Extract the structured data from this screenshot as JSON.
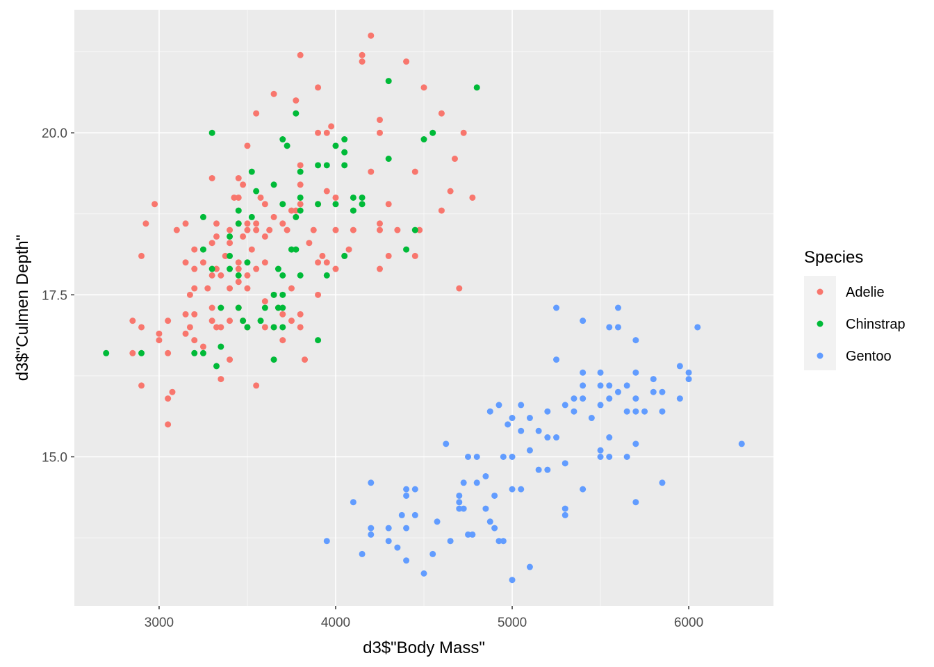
{
  "chart_data": {
    "type": "scatter",
    "xlabel": "d3$\"Body Mass\"",
    "ylabel": "d3$\"Culmen Depth\"",
    "xlim": [
      2520,
      6480
    ],
    "ylim": [
      12.7,
      21.9
    ],
    "x_ticks": [
      3000,
      4000,
      5000,
      6000
    ],
    "y_ticks": [
      15.0,
      17.5,
      20.0
    ],
    "x_tick_labels": [
      "3000",
      "4000",
      "5000",
      "6000"
    ],
    "y_tick_labels": [
      "15.0",
      "17.5",
      "20.0"
    ],
    "grid": true,
    "legend": {
      "title": "Species",
      "placement": "right"
    },
    "series": [
      {
        "name": "Adelie",
        "color": "#F8766D",
        "points": [
          [
            2850,
            17.1
          ],
          [
            2850,
            16.6
          ],
          [
            2900,
            18.1
          ],
          [
            2900,
            17.0
          ],
          [
            2900,
            16.1
          ],
          [
            2925,
            18.6
          ],
          [
            2975,
            18.9
          ],
          [
            3000,
            16.9
          ],
          [
            3000,
            16.8
          ],
          [
            3050,
            17.1
          ],
          [
            3050,
            16.6
          ],
          [
            3050,
            15.9
          ],
          [
            3050,
            15.5
          ],
          [
            3075,
            16.0
          ],
          [
            3100,
            18.5
          ],
          [
            3150,
            18.6
          ],
          [
            3150,
            18.0
          ],
          [
            3150,
            17.2
          ],
          [
            3150,
            16.9
          ],
          [
            3175,
            17.5
          ],
          [
            3175,
            17.0
          ],
          [
            3200,
            17.9
          ],
          [
            3200,
            18.2
          ],
          [
            3200,
            17.6
          ],
          [
            3200,
            17.2
          ],
          [
            3200,
            16.8
          ],
          [
            3250,
            18.0
          ],
          [
            3250,
            16.7
          ],
          [
            3275,
            17.6
          ],
          [
            3300,
            19.3
          ],
          [
            3300,
            18.3
          ],
          [
            3300,
            17.8
          ],
          [
            3300,
            17.3
          ],
          [
            3300,
            17.1
          ],
          [
            3325,
            18.6
          ],
          [
            3325,
            18.4
          ],
          [
            3325,
            17.9
          ],
          [
            3325,
            17.0
          ],
          [
            3350,
            17.8
          ],
          [
            3350,
            17.0
          ],
          [
            3350,
            16.2
          ],
          [
            3375,
            18.1
          ],
          [
            3400,
            18.5
          ],
          [
            3400,
            18.3
          ],
          [
            3400,
            17.6
          ],
          [
            3400,
            17.1
          ],
          [
            3400,
            16.5
          ],
          [
            3425,
            19.0
          ],
          [
            3450,
            19.3
          ],
          [
            3450,
            19.0
          ],
          [
            3450,
            18.6
          ],
          [
            3450,
            18.0
          ],
          [
            3450,
            17.9
          ],
          [
            3450,
            17.7
          ],
          [
            3450,
            17.3
          ],
          [
            3475,
            19.2
          ],
          [
            3475,
            18.4
          ],
          [
            3475,
            17.1
          ],
          [
            3500,
            19.8
          ],
          [
            3500,
            18.6
          ],
          [
            3500,
            18.5
          ],
          [
            3500,
            17.8
          ],
          [
            3500,
            17.6
          ],
          [
            3500,
            17.0
          ],
          [
            3525,
            18.2
          ],
          [
            3550,
            20.3
          ],
          [
            3550,
            18.6
          ],
          [
            3550,
            18.5
          ],
          [
            3550,
            17.9
          ],
          [
            3550,
            16.1
          ],
          [
            3575,
            19.0
          ],
          [
            3600,
            18.9
          ],
          [
            3600,
            18.4
          ],
          [
            3600,
            18.0
          ],
          [
            3600,
            17.4
          ],
          [
            3600,
            17.0
          ],
          [
            3625,
            18.5
          ],
          [
            3650,
            20.6
          ],
          [
            3650,
            18.7
          ],
          [
            3650,
            17.5
          ],
          [
            3650,
            17.0
          ],
          [
            3675,
            17.3
          ],
          [
            3700,
            18.6
          ],
          [
            3700,
            17.2
          ],
          [
            3700,
            16.8
          ],
          [
            3725,
            18.5
          ],
          [
            3750,
            18.8
          ],
          [
            3750,
            17.6
          ],
          [
            3750,
            17.1
          ],
          [
            3775,
            20.5
          ],
          [
            3775,
            18.8
          ],
          [
            3800,
            21.2
          ],
          [
            3800,
            19.5
          ],
          [
            3800,
            19.2
          ],
          [
            3800,
            18.9
          ],
          [
            3800,
            17.2
          ],
          [
            3800,
            17.0
          ],
          [
            3825,
            16.5
          ],
          [
            3850,
            18.3
          ],
          [
            3875,
            18.5
          ],
          [
            3900,
            20.7
          ],
          [
            3900,
            20.0
          ],
          [
            3900,
            18.9
          ],
          [
            3900,
            18.0
          ],
          [
            3900,
            17.5
          ],
          [
            3925,
            18.1
          ],
          [
            3950,
            20.0
          ],
          [
            3950,
            19.1
          ],
          [
            3950,
            18.0
          ],
          [
            3975,
            20.1
          ],
          [
            4000,
            19.0
          ],
          [
            4000,
            18.5
          ],
          [
            4000,
            17.9
          ],
          [
            4050,
            18.1
          ],
          [
            4075,
            18.2
          ],
          [
            4100,
            18.5
          ],
          [
            4150,
            21.2
          ],
          [
            4150,
            21.1
          ],
          [
            4200,
            21.5
          ],
          [
            4200,
            19.4
          ],
          [
            4250,
            20.2
          ],
          [
            4250,
            20.0
          ],
          [
            4250,
            18.6
          ],
          [
            4250,
            18.5
          ],
          [
            4250,
            17.9
          ],
          [
            4300,
            18.9
          ],
          [
            4300,
            18.1
          ],
          [
            4350,
            18.5
          ],
          [
            4400,
            21.1
          ],
          [
            4450,
            19.4
          ],
          [
            4450,
            18.1
          ],
          [
            4475,
            18.5
          ],
          [
            4500,
            20.7
          ],
          [
            4600,
            20.3
          ],
          [
            4600,
            18.8
          ],
          [
            4650,
            19.1
          ],
          [
            4675,
            19.6
          ],
          [
            4700,
            17.6
          ],
          [
            4725,
            20.0
          ],
          [
            4775,
            19.0
          ]
        ]
      },
      {
        "name": "Chinstrap",
        "color": "#00BA38",
        "points": [
          [
            2700,
            16.6
          ],
          [
            2900,
            16.6
          ],
          [
            3200,
            16.6
          ],
          [
            3250,
            16.6
          ],
          [
            3250,
            18.7
          ],
          [
            3250,
            18.2
          ],
          [
            3300,
            20.0
          ],
          [
            3300,
            17.9
          ],
          [
            3325,
            16.4
          ],
          [
            3350,
            17.3
          ],
          [
            3350,
            16.7
          ],
          [
            3400,
            18.1
          ],
          [
            3400,
            18.4
          ],
          [
            3400,
            17.9
          ],
          [
            3450,
            18.6
          ],
          [
            3450,
            18.8
          ],
          [
            3450,
            17.8
          ],
          [
            3450,
            17.3
          ],
          [
            3475,
            17.1
          ],
          [
            3500,
            18.0
          ],
          [
            3500,
            17.0
          ],
          [
            3525,
            19.4
          ],
          [
            3525,
            18.7
          ],
          [
            3550,
            19.1
          ],
          [
            3575,
            17.1
          ],
          [
            3600,
            17.3
          ],
          [
            3650,
            19.2
          ],
          [
            3650,
            17.5
          ],
          [
            3650,
            17.0
          ],
          [
            3650,
            16.5
          ],
          [
            3675,
            17.9
          ],
          [
            3675,
            17.3
          ],
          [
            3700,
            19.9
          ],
          [
            3700,
            18.9
          ],
          [
            3700,
            17.8
          ],
          [
            3700,
            17.5
          ],
          [
            3700,
            17.3
          ],
          [
            3700,
            17.0
          ],
          [
            3725,
            19.8
          ],
          [
            3750,
            18.2
          ],
          [
            3775,
            20.3
          ],
          [
            3775,
            18.7
          ],
          [
            3775,
            18.2
          ],
          [
            3800,
            19.4
          ],
          [
            3800,
            19.0
          ],
          [
            3800,
            18.8
          ],
          [
            3800,
            17.8
          ],
          [
            3900,
            19.5
          ],
          [
            3900,
            18.9
          ],
          [
            3900,
            16.8
          ],
          [
            3950,
            19.5
          ],
          [
            3950,
            17.8
          ],
          [
            4000,
            19.8
          ],
          [
            4000,
            18.9
          ],
          [
            4050,
            19.9
          ],
          [
            4050,
            19.7
          ],
          [
            4050,
            19.5
          ],
          [
            4050,
            18.1
          ],
          [
            4100,
            18.8
          ],
          [
            4100,
            19.0
          ],
          [
            4150,
            19.0
          ],
          [
            4150,
            18.9
          ],
          [
            4300,
            20.8
          ],
          [
            4300,
            19.6
          ],
          [
            4400,
            18.2
          ],
          [
            4450,
            18.5
          ],
          [
            4500,
            19.9
          ],
          [
            4550,
            20.0
          ],
          [
            4800,
            20.7
          ]
        ]
      },
      {
        "name": "Gentoo",
        "color": "#619CFF",
        "points": [
          [
            3950,
            13.7
          ],
          [
            4100,
            14.3
          ],
          [
            4150,
            13.5
          ],
          [
            4200,
            14.6
          ],
          [
            4200,
            13.9
          ],
          [
            4200,
            13.8
          ],
          [
            4300,
            13.9
          ],
          [
            4300,
            13.7
          ],
          [
            4350,
            13.6
          ],
          [
            4375,
            14.1
          ],
          [
            4400,
            14.5
          ],
          [
            4400,
            14.4
          ],
          [
            4400,
            13.9
          ],
          [
            4400,
            13.4
          ],
          [
            4450,
            14.5
          ],
          [
            4450,
            14.1
          ],
          [
            4500,
            13.2
          ],
          [
            4550,
            13.5
          ],
          [
            4575,
            14.0
          ],
          [
            4625,
            15.2
          ],
          [
            4650,
            13.7
          ],
          [
            4700,
            14.4
          ],
          [
            4700,
            14.3
          ],
          [
            4700,
            14.2
          ],
          [
            4725,
            14.6
          ],
          [
            4725,
            14.2
          ],
          [
            4750,
            13.8
          ],
          [
            4750,
            15.0
          ],
          [
            4775,
            13.8
          ],
          [
            4800,
            15.0
          ],
          [
            4800,
            14.6
          ],
          [
            4850,
            14.7
          ],
          [
            4850,
            14.2
          ],
          [
            4875,
            14.0
          ],
          [
            4875,
            15.7
          ],
          [
            4900,
            14.4
          ],
          [
            4900,
            13.9
          ],
          [
            4925,
            15.8
          ],
          [
            4925,
            13.7
          ],
          [
            4950,
            15.0
          ],
          [
            4950,
            13.7
          ],
          [
            4975,
            15.5
          ],
          [
            5000,
            15.6
          ],
          [
            5000,
            15.0
          ],
          [
            5000,
            14.5
          ],
          [
            5000,
            13.1
          ],
          [
            5050,
            15.8
          ],
          [
            5050,
            15.4
          ],
          [
            5050,
            14.5
          ],
          [
            5100,
            15.6
          ],
          [
            5100,
            15.1
          ],
          [
            5100,
            13.3
          ],
          [
            5150,
            15.4
          ],
          [
            5150,
            14.8
          ],
          [
            5200,
            15.7
          ],
          [
            5200,
            15.3
          ],
          [
            5200,
            14.8
          ],
          [
            5250,
            17.3
          ],
          [
            5250,
            16.5
          ],
          [
            5250,
            15.3
          ],
          [
            5300,
            15.8
          ],
          [
            5300,
            14.9
          ],
          [
            5300,
            14.2
          ],
          [
            5300,
            14.1
          ],
          [
            5350,
            15.9
          ],
          [
            5350,
            15.7
          ],
          [
            5400,
            17.1
          ],
          [
            5400,
            16.3
          ],
          [
            5400,
            16.1
          ],
          [
            5400,
            15.9
          ],
          [
            5400,
            14.5
          ],
          [
            5450,
            15.6
          ],
          [
            5500,
            16.3
          ],
          [
            5500,
            16.1
          ],
          [
            5500,
            15.8
          ],
          [
            5500,
            15.1
          ],
          [
            5500,
            15.0
          ],
          [
            5550,
            17.0
          ],
          [
            5550,
            16.1
          ],
          [
            5550,
            15.9
          ],
          [
            5550,
            15.3
          ],
          [
            5550,
            15.0
          ],
          [
            5600,
            17.3
          ],
          [
            5600,
            17.0
          ],
          [
            5600,
            16.0
          ],
          [
            5650,
            16.1
          ],
          [
            5650,
            15.7
          ],
          [
            5650,
            15.0
          ],
          [
            5700,
            16.8
          ],
          [
            5700,
            16.3
          ],
          [
            5700,
            15.9
          ],
          [
            5700,
            15.7
          ],
          [
            5700,
            15.2
          ],
          [
            5700,
            14.3
          ],
          [
            5750,
            15.7
          ],
          [
            5800,
            16.2
          ],
          [
            5800,
            16.0
          ],
          [
            5850,
            16.0
          ],
          [
            5850,
            15.7
          ],
          [
            5850,
            14.6
          ],
          [
            5950,
            16.4
          ],
          [
            5950,
            15.9
          ],
          [
            6000,
            16.3
          ],
          [
            6000,
            16.2
          ],
          [
            6050,
            17.0
          ],
          [
            6300,
            15.2
          ]
        ]
      }
    ]
  }
}
